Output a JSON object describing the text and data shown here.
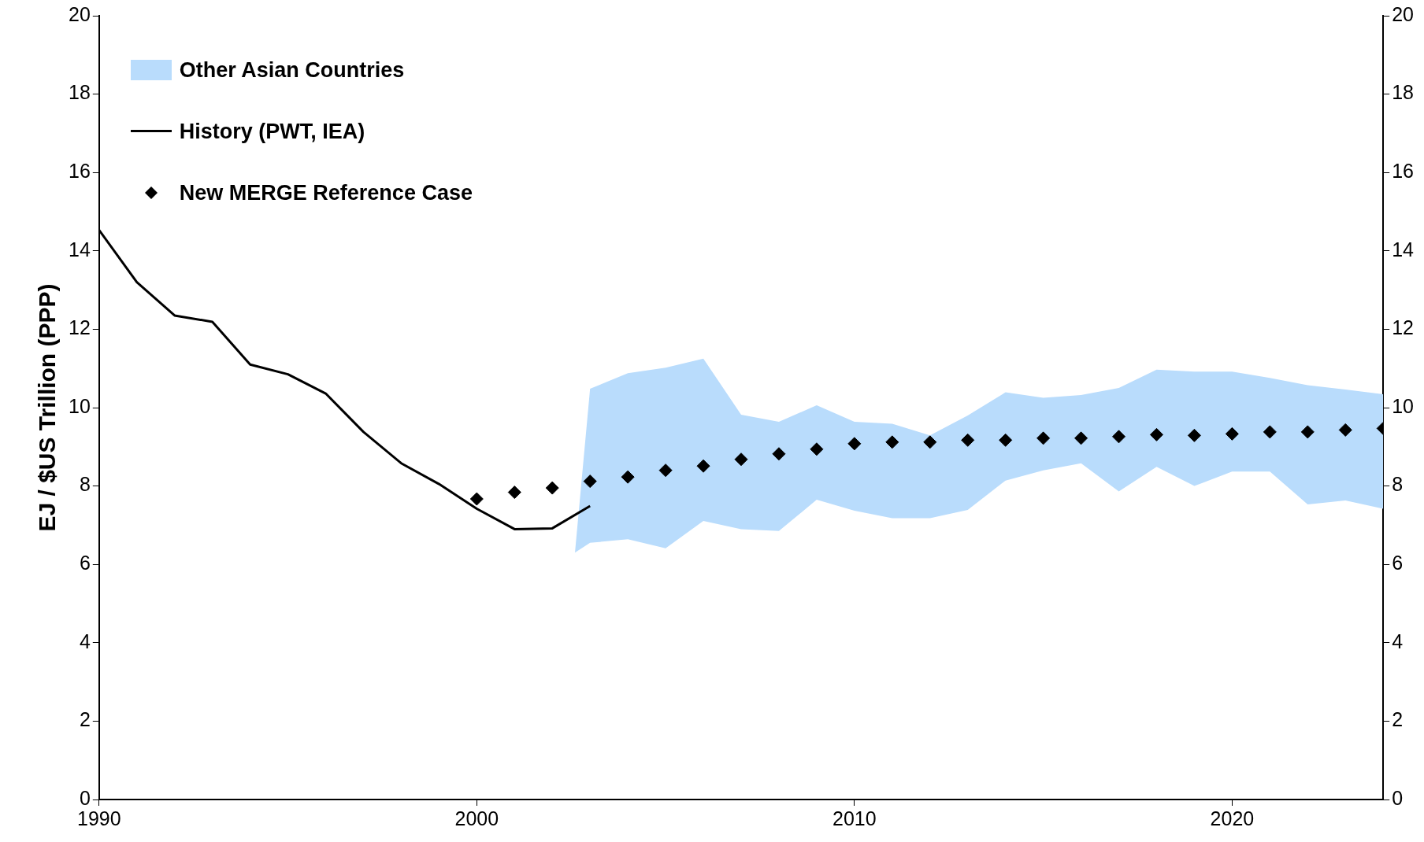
{
  "chart_data": {
    "type": "line",
    "ylabel": "EJ / $US Trillion (PPP)",
    "xlim": [
      1990,
      2024
    ],
    "xticks": [
      1990,
      2000,
      2010,
      2020
    ],
    "ylim": [
      0,
      20
    ],
    "yticks": [
      0,
      2,
      4,
      6,
      8,
      10,
      12,
      14,
      16,
      18,
      20
    ],
    "y2lim": [
      0,
      20
    ],
    "y2ticks": [
      0,
      2,
      4,
      6,
      8,
      10,
      12,
      14,
      16,
      18,
      20
    ],
    "grid": false,
    "legend": "top left",
    "series": [
      {
        "name": "Other Asian Countries",
        "type": "area",
        "color": "#b9dcfc",
        "x": [
          2002.6,
          2003,
          2004,
          2005,
          2006,
          2007,
          2008,
          2009,
          2010,
          2011,
          2012,
          2013,
          2014,
          2015,
          2016,
          2017,
          2018,
          2019,
          2020,
          2021,
          2022,
          2023,
          2024
        ],
        "values": [
          null,
          null,
          null,
          null,
          null,
          null,
          null,
          null,
          null,
          null,
          null,
          null,
          null,
          null,
          null,
          null,
          null,
          null,
          null,
          null,
          null,
          null,
          null
        ],
        "lower": [
          6.3,
          6.55,
          6.64,
          6.41,
          7.11,
          6.9,
          6.85,
          7.65,
          7.37,
          7.18,
          7.18,
          7.39,
          8.14,
          8.4,
          8.58,
          7.86,
          8.49,
          8.0,
          8.37,
          8.37,
          7.53,
          7.63,
          7.42
        ],
        "upper": [
          6.3,
          10.48,
          10.88,
          11.02,
          11.25,
          9.82,
          9.64,
          10.06,
          9.64,
          9.59,
          9.29,
          9.8,
          10.39,
          10.25,
          10.32,
          10.5,
          10.97,
          10.92,
          10.92,
          10.76,
          10.57,
          10.46,
          10.34
        ]
      },
      {
        "name": "History (PWT, IEA)",
        "color": "#000000",
        "line_style": "solid",
        "marker": "none",
        "x": [
          1990,
          1991,
          1992,
          1993,
          1994,
          1995,
          1996,
          1997,
          1998,
          1999,
          2000,
          2001,
          2002,
          2003
        ],
        "values": [
          14.53,
          13.2,
          12.35,
          12.19,
          11.1,
          10.85,
          10.36,
          9.38,
          8.58,
          8.05,
          7.42,
          6.9,
          6.92,
          7.49
        ]
      },
      {
        "name": "New MERGE Reference Case",
        "type": "scatter",
        "color": "#000000",
        "marker": "diamond",
        "x": [
          2000,
          2001,
          2002,
          2003,
          2004,
          2005,
          2006,
          2007,
          2008,
          2009,
          2010,
          2011,
          2012,
          2013,
          2014,
          2015,
          2016,
          2017,
          2018,
          2019,
          2020,
          2021,
          2022,
          2023,
          2024
        ],
        "values": [
          7.67,
          7.84,
          7.95,
          8.12,
          8.23,
          8.4,
          8.51,
          8.68,
          8.82,
          8.94,
          9.08,
          9.12,
          9.12,
          9.17,
          9.17,
          9.22,
          9.22,
          9.26,
          9.31,
          9.29,
          9.33,
          9.38,
          9.38,
          9.43,
          9.47
        ]
      }
    ]
  }
}
